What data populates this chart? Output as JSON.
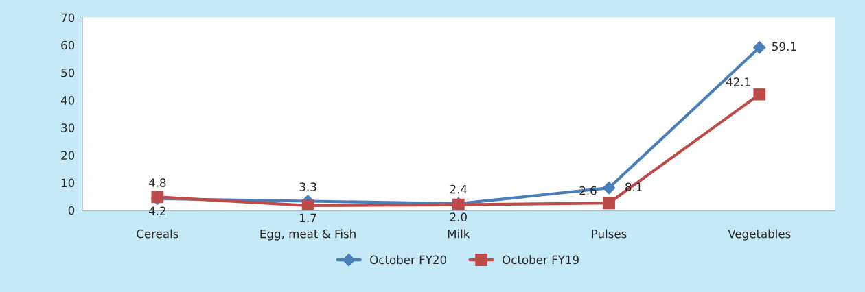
{
  "chart_data": {
    "type": "line",
    "categories": [
      "Cereals",
      "Egg, meat & Fish",
      "Milk",
      "Pulses",
      "Vegetables"
    ],
    "series": [
      {
        "name": "October FY20",
        "color": "#4a7ebb",
        "marker": "diamond",
        "values": [
          4.2,
          3.3,
          2.4,
          8.1,
          59.1
        ],
        "value_labels": [
          "4.2",
          "3.3",
          "2.4",
          "8.1",
          "59.1"
        ]
      },
      {
        "name": "October FY19",
        "color": "#be4b48",
        "marker": "square",
        "values": [
          4.8,
          1.7,
          2.0,
          2.6,
          42.1
        ],
        "value_labels": [
          "4.8",
          "1.7",
          "2.0",
          "2.6",
          "42.1"
        ]
      }
    ],
    "ylim": [
      0,
      70
    ],
    "yticks": [
      0,
      10,
      20,
      30,
      40,
      50,
      60,
      70
    ],
    "grid": false,
    "legend": "bottom"
  }
}
